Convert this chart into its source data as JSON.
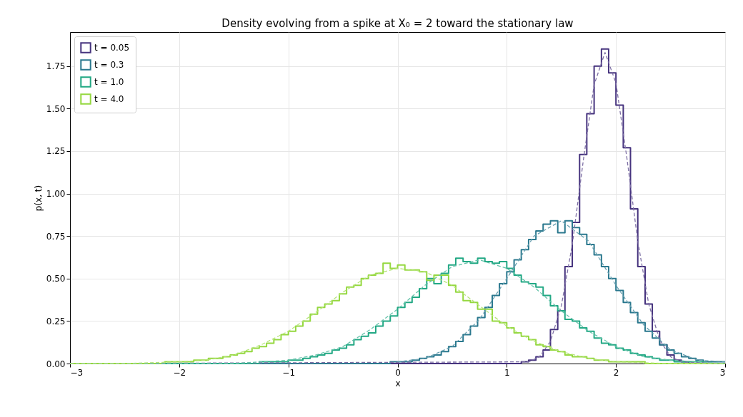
{
  "chart_data": {
    "type": "histogram",
    "title": "Density evolving from a spike at X₀ = 2 toward the stationary law",
    "xlabel": "x",
    "ylabel": "p(x, t)",
    "bins": [
      -3,
      -2.933,
      -2.867,
      -2.8,
      -2.733,
      -2.667,
      -2.6,
      -2.533,
      -2.467,
      -2.4,
      -2.333,
      -2.267,
      -2.2,
      -2.133,
      -2.067,
      -2,
      -1.933,
      -1.867,
      -1.8,
      -1.733,
      -1.667,
      -1.6,
      -1.533,
      -1.467,
      -1.4,
      -1.333,
      -1.267,
      -1.2,
      -1.133,
      -1.067,
      -1,
      -0.933,
      -0.867,
      -0.8,
      -0.733,
      -0.667,
      -0.6,
      -0.533,
      -0.467,
      -0.4,
      -0.333,
      -0.267,
      -0.2,
      -0.133,
      -0.067,
      0,
      0.067,
      0.133,
      0.2,
      0.267,
      0.333,
      0.4,
      0.467,
      0.533,
      0.6,
      0.667,
      0.733,
      0.8,
      0.867,
      0.933,
      1,
      1.067,
      1.133,
      1.2,
      1.267,
      1.333,
      1.4,
      1.467,
      1.533,
      1.6,
      1.667,
      1.733,
      1.8,
      1.867,
      1.933,
      2,
      2.067,
      2.133,
      2.2,
      2.267,
      2.333,
      2.4,
      2.467,
      2.533,
      2.6,
      2.667,
      2.733,
      2.8,
      2.867,
      2.933,
      3
    ],
    "series": [
      {
        "name": "t = 0.05",
        "color": "#46337e",
        "values": [
          0,
          0,
          0,
          0,
          0,
          0,
          0,
          0,
          0,
          0,
          0,
          0,
          0,
          0,
          0,
          0,
          0,
          0,
          0,
          0,
          0,
          0,
          0,
          0,
          0,
          0,
          0,
          0,
          0,
          0,
          0,
          0,
          0,
          0,
          0,
          0,
          0,
          0,
          0,
          0,
          0,
          0,
          0,
          0,
          0,
          0,
          0,
          0,
          0,
          0,
          0,
          0,
          0,
          0,
          0,
          0,
          0,
          0,
          0,
          0,
          0,
          0,
          0.01,
          0.02,
          0.04,
          0.08,
          0.2,
          0.31,
          0.57,
          0.83,
          1.23,
          1.47,
          1.75,
          1.85,
          1.71,
          1.52,
          1.27,
          0.91,
          0.57,
          0.35,
          0.19,
          0.11,
          0.05,
          0.02,
          0.01,
          0,
          0,
          0,
          0,
          0
        ]
      },
      {
        "name": "t = 0.3",
        "color": "#2a788e",
        "values": [
          0,
          0,
          0,
          0,
          0,
          0,
          0,
          0,
          0,
          0,
          0,
          0,
          0,
          0,
          0,
          0,
          0,
          0,
          0,
          0,
          0,
          0,
          0,
          0,
          0,
          0,
          0,
          0,
          0,
          0,
          0,
          0,
          0,
          0,
          0,
          0,
          0,
          0,
          0,
          0,
          0,
          0,
          0,
          0,
          0.01,
          0.01,
          0.01,
          0.02,
          0.03,
          0.04,
          0.05,
          0.07,
          0.1,
          0.13,
          0.17,
          0.22,
          0.27,
          0.33,
          0.4,
          0.47,
          0.54,
          0.61,
          0.67,
          0.73,
          0.78,
          0.82,
          0.84,
          0.77,
          0.84,
          0.8,
          0.76,
          0.7,
          0.64,
          0.57,
          0.5,
          0.43,
          0.36,
          0.3,
          0.24,
          0.19,
          0.15,
          0.11,
          0.08,
          0.06,
          0.04,
          0.03,
          0.02,
          0.01,
          0.01,
          0.01
        ]
      },
      {
        "name": "t = 1.0",
        "color": "#22a884",
        "values": [
          0,
          0,
          0,
          0,
          0,
          0,
          0,
          0,
          0,
          0,
          0,
          0,
          0,
          0,
          0,
          0,
          0,
          0,
          0,
          0,
          0,
          0,
          0,
          0,
          0,
          0,
          0.01,
          0.01,
          0.01,
          0.01,
          0.02,
          0.02,
          0.03,
          0.04,
          0.05,
          0.06,
          0.08,
          0.09,
          0.11,
          0.14,
          0.16,
          0.18,
          0.22,
          0.25,
          0.28,
          0.33,
          0.36,
          0.39,
          0.44,
          0.5,
          0.47,
          0.53,
          0.58,
          0.62,
          0.6,
          0.59,
          0.62,
          0.6,
          0.59,
          0.6,
          0.56,
          0.52,
          0.48,
          0.47,
          0.45,
          0.4,
          0.34,
          0.31,
          0.26,
          0.25,
          0.21,
          0.19,
          0.15,
          0.12,
          0.11,
          0.09,
          0.08,
          0.06,
          0.05,
          0.04,
          0.03,
          0.02,
          0.02,
          0.01,
          0.01,
          0.01,
          0.01,
          0,
          0,
          0
        ]
      },
      {
        "name": "t = 4.0",
        "color": "#95d840",
        "values": [
          0,
          0,
          0,
          0,
          0,
          0,
          0,
          0,
          0,
          0,
          0,
          0,
          0,
          0.01,
          0.01,
          0.01,
          0.01,
          0.02,
          0.02,
          0.03,
          0.03,
          0.04,
          0.05,
          0.06,
          0.07,
          0.09,
          0.1,
          0.12,
          0.14,
          0.17,
          0.19,
          0.22,
          0.25,
          0.29,
          0.33,
          0.35,
          0.37,
          0.41,
          0.45,
          0.46,
          0.5,
          0.52,
          0.53,
          0.59,
          0.56,
          0.58,
          0.55,
          0.55,
          0.54,
          0.49,
          0.52,
          0.52,
          0.46,
          0.42,
          0.37,
          0.36,
          0.32,
          0.32,
          0.25,
          0.24,
          0.21,
          0.18,
          0.16,
          0.14,
          0.11,
          0.1,
          0.08,
          0.07,
          0.05,
          0.04,
          0.04,
          0.03,
          0.02,
          0.02,
          0.01,
          0.01,
          0.01,
          0.01,
          0.01,
          0,
          0,
          0,
          0,
          0,
          0,
          0,
          0,
          0,
          0,
          0
        ]
      },
      {
        "type": "line",
        "line_style": "dashed",
        "color": "#7e70a5",
        "x": [
          -3,
          1.2,
          1.3,
          1.4,
          1.5,
          1.6,
          1.7,
          1.8,
          1.9,
          2.0,
          2.1,
          2.2,
          2.3,
          2.4,
          2.5,
          2.6,
          3
        ],
        "values": [
          0,
          0.01,
          0.04,
          0.13,
          0.34,
          0.7,
          1.19,
          1.64,
          1.83,
          1.65,
          1.21,
          0.72,
          0.35,
          0.14,
          0.04,
          0.01,
          0
        ]
      },
      {
        "type": "line",
        "line_style": "dashed",
        "color": "#6aa0b0",
        "x": [
          0,
          0.25,
          0.5,
          0.75,
          1,
          1.25,
          1.5,
          1.75,
          2,
          2.25,
          2.5,
          2.75,
          3
        ],
        "values": [
          0.01,
          0.03,
          0.1,
          0.26,
          0.5,
          0.75,
          0.84,
          0.72,
          0.46,
          0.23,
          0.08,
          0.02,
          0.01
        ]
      },
      {
        "type": "line",
        "line_style": "dashed",
        "color": "#64c2a9",
        "x": [
          -3,
          -2,
          -1.5,
          -1.25,
          -1,
          -0.75,
          -0.5,
          -0.25,
          0,
          0.25,
          0.5,
          0.75,
          1,
          1.25,
          1.5,
          1.75,
          2,
          2.25,
          2.5,
          2.75,
          3
        ],
        "values": [
          0,
          0,
          0,
          0.01,
          0.02,
          0.05,
          0.1,
          0.2,
          0.32,
          0.46,
          0.57,
          0.61,
          0.56,
          0.45,
          0.31,
          0.19,
          0.1,
          0.04,
          0.02,
          0.01,
          0
        ]
      },
      {
        "type": "line",
        "line_style": "dashed",
        "color": "#b5e479",
        "x": [
          -3,
          -2.5,
          -2,
          -1.75,
          -1.5,
          -1.25,
          -1,
          -0.75,
          -0.5,
          -0.25,
          0,
          0.25,
          0.5,
          0.75,
          1,
          1.25,
          1.5,
          1.75,
          2,
          2.5,
          3
        ],
        "values": [
          0,
          0,
          0.01,
          0.02,
          0.05,
          0.11,
          0.19,
          0.3,
          0.42,
          0.52,
          0.56,
          0.54,
          0.46,
          0.34,
          0.22,
          0.13,
          0.07,
          0.03,
          0.01,
          0,
          0
        ]
      }
    ],
    "xlim": [
      -3,
      3
    ],
    "xticks": [
      {
        "value": -3,
        "label": "−3"
      },
      {
        "value": -2,
        "label": "−2"
      },
      {
        "value": -1,
        "label": "−1"
      },
      0,
      1,
      2,
      3
    ],
    "ylim": [
      0,
      1.95
    ],
    "yticks": [
      {
        "value": 0,
        "label": "0.00"
      },
      0.25,
      {
        "value": 0.5,
        "label": "0.50"
      },
      0.75,
      {
        "value": 1,
        "label": "1.00"
      },
      1.25,
      {
        "value": 1.5,
        "label": "1.50"
      },
      1.75
    ],
    "grid": true,
    "legend": "top left"
  }
}
